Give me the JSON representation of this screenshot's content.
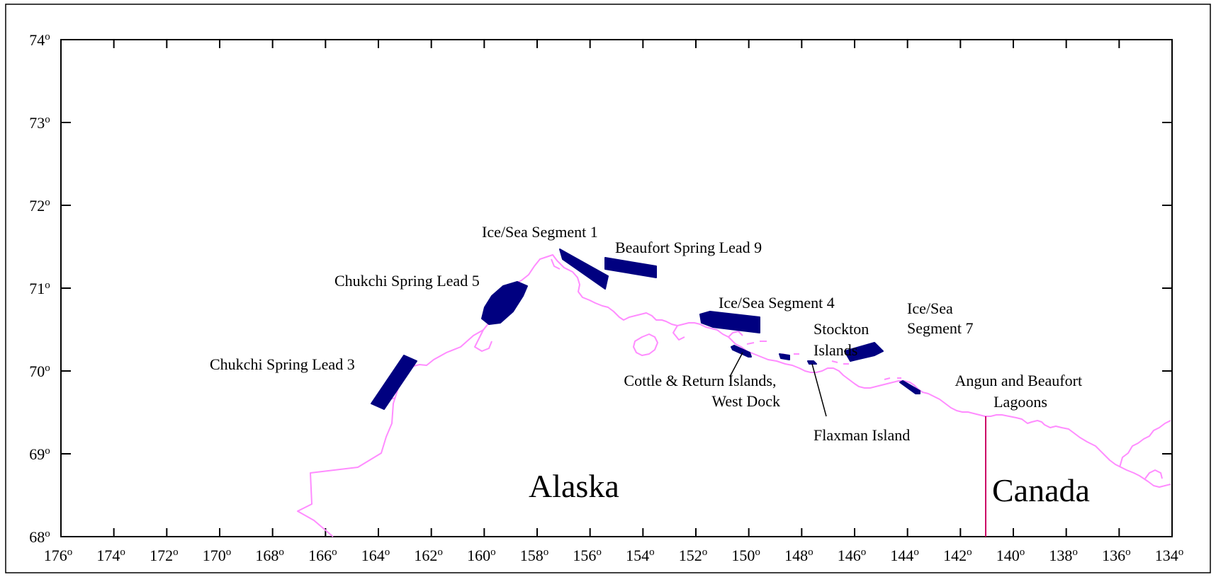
{
  "map": {
    "longitude_ticks": [
      "176",
      "174",
      "172",
      "170",
      "168",
      "166",
      "164",
      "162",
      "160",
      "158",
      "156",
      "154",
      "152",
      "150",
      "148",
      "146",
      "144",
      "142",
      "140",
      "138",
      "136",
      "134"
    ],
    "latitude_ticks": [
      "74",
      "73",
      "72",
      "71",
      "70",
      "69",
      "68"
    ],
    "degree_symbol": "o",
    "regions": {
      "alaska": "Alaska",
      "canada": "Canada"
    },
    "sites": [
      {
        "id": "ice-sea-segment-1",
        "lines": [
          "Ice/Sea Segment 1"
        ]
      },
      {
        "id": "beaufort-spring-lead-9",
        "lines": [
          "Beaufort Spring Lead 9"
        ]
      },
      {
        "id": "chukchi-spring-lead-5",
        "lines": [
          "Chukchi Spring Lead 5"
        ]
      },
      {
        "id": "ice-sea-segment-4",
        "lines": [
          "Ice/Sea Segment 4"
        ]
      },
      {
        "id": "ice-sea-segment-7",
        "lines": [
          "Ice/Sea",
          "Segment 7"
        ]
      },
      {
        "id": "stockton-islands",
        "lines": [
          "Stockton",
          "Islands"
        ]
      },
      {
        "id": "chukchi-spring-lead-3",
        "lines": [
          "Chukchi Spring Lead 3"
        ]
      },
      {
        "id": "cottle-return-islands-west-dock",
        "lines": [
          "Cottle & Return Islands,",
          "West Dock"
        ]
      },
      {
        "id": "angun-beaufort-lagoons",
        "lines": [
          "Angun and Beaufort",
          "Lagoons"
        ]
      },
      {
        "id": "flaxman-island",
        "lines": [
          "Flaxman Island"
        ]
      }
    ],
    "colors": {
      "coastline": "#ff8cff",
      "study_area": "#000080",
      "border": "#cc0066",
      "frame": "#000000"
    }
  }
}
